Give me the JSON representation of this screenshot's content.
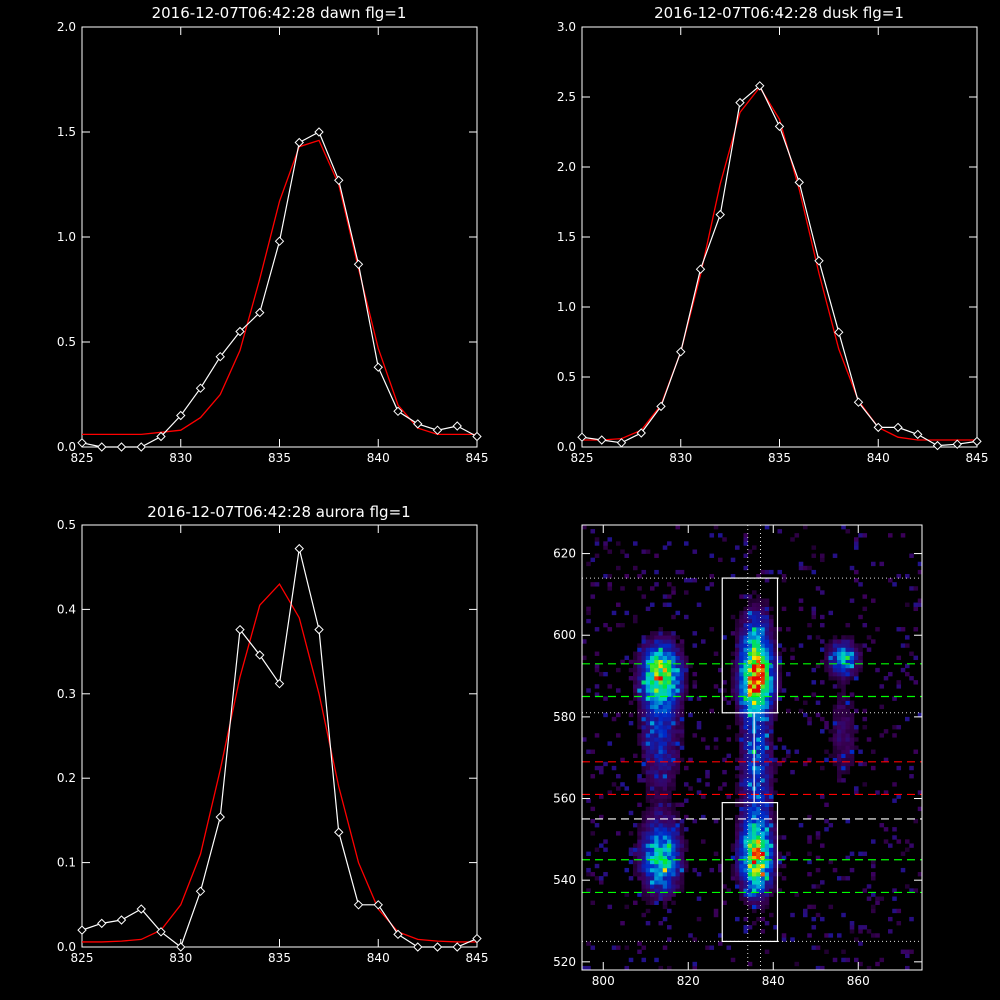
{
  "colors": {
    "background": "#000000",
    "axes": "#ffffff",
    "data": "#ffffff",
    "fit": "#ff0000",
    "green_line": "#00ff00",
    "red_line": "#ff0000"
  },
  "chart_data": [
    {
      "id": "dawn",
      "type": "line",
      "title": "2016-12-07T06:42:28 dawn flg=1",
      "xlim": [
        825,
        845
      ],
      "ylim": [
        0,
        2.0
      ],
      "xticks": [
        "825",
        "830",
        "835",
        "840",
        "845"
      ],
      "yticks": [
        "0.0",
        "0.5",
        "1.0",
        "1.5",
        "2.0"
      ],
      "data_x": [
        825,
        826,
        827,
        828,
        829,
        830,
        831,
        832,
        833,
        834,
        835,
        836,
        837,
        838,
        839,
        840,
        841,
        842,
        843,
        844,
        845
      ],
      "data_y": [
        0.02,
        0.0,
        0.0,
        0.0,
        0.05,
        0.15,
        0.28,
        0.43,
        0.55,
        0.64,
        0.98,
        1.45,
        1.5,
        1.27,
        0.87,
        0.38,
        0.17,
        0.11,
        0.08,
        0.1,
        0.05
      ],
      "fit_x": [
        825,
        826,
        827,
        828,
        829,
        830,
        831,
        832,
        833,
        834,
        835,
        836,
        837,
        838,
        839,
        840,
        841,
        842,
        843,
        844,
        845
      ],
      "fit_y": [
        0.06,
        0.06,
        0.06,
        0.06,
        0.07,
        0.08,
        0.14,
        0.25,
        0.46,
        0.8,
        1.17,
        1.43,
        1.46,
        1.25,
        0.85,
        0.47,
        0.2,
        0.09,
        0.06,
        0.06,
        0.06
      ]
    },
    {
      "id": "dusk",
      "type": "line",
      "title": "2016-12-07T06:42:28 dusk flg=1",
      "xlim": [
        825,
        845
      ],
      "ylim": [
        0,
        3.0
      ],
      "xticks": [
        "825",
        "830",
        "835",
        "840",
        "845"
      ],
      "yticks": [
        "0.0",
        "0.5",
        "1.0",
        "1.5",
        "2.0",
        "2.5",
        "3.0"
      ],
      "data_x": [
        825,
        826,
        827,
        828,
        829,
        830,
        831,
        832,
        833,
        834,
        835,
        836,
        837,
        838,
        839,
        840,
        841,
        842,
        843,
        844,
        845
      ],
      "data_y": [
        0.07,
        0.05,
        0.03,
        0.1,
        0.29,
        0.68,
        1.27,
        1.66,
        2.46,
        2.58,
        2.29,
        1.89,
        1.33,
        0.82,
        0.32,
        0.14,
        0.14,
        0.09,
        0.01,
        0.02,
        0.04
      ],
      "fit_x": [
        825,
        826,
        827,
        828,
        829,
        830,
        831,
        832,
        833,
        834,
        835,
        836,
        837,
        838,
        839,
        840,
        841,
        842,
        843,
        844,
        845
      ],
      "fit_y": [
        0.05,
        0.05,
        0.06,
        0.12,
        0.3,
        0.68,
        1.23,
        1.88,
        2.39,
        2.57,
        2.34,
        1.84,
        1.24,
        0.7,
        0.33,
        0.14,
        0.07,
        0.05,
        0.05,
        0.05,
        0.05
      ]
    },
    {
      "id": "aurora",
      "type": "line",
      "title": "2016-12-07T06:42:28 aurora flg=1",
      "xlim": [
        825,
        845
      ],
      "ylim": [
        0,
        0.5
      ],
      "xticks": [
        "825",
        "830",
        "835",
        "840",
        "845"
      ],
      "yticks": [
        "0.0",
        "0.1",
        "0.2",
        "0.3",
        "0.4",
        "0.5"
      ],
      "data_x": [
        825,
        826,
        827,
        828,
        829,
        830,
        831,
        832,
        833,
        834,
        835,
        836,
        837,
        838,
        839,
        840,
        841,
        842,
        843,
        844,
        845
      ],
      "data_y": [
        0.02,
        0.028,
        0.032,
        0.045,
        0.018,
        0.0,
        0.066,
        0.154,
        0.376,
        0.346,
        0.312,
        0.472,
        0.376,
        0.136,
        0.05,
        0.05,
        0.015,
        0.0,
        0.0,
        0.0,
        0.01
      ],
      "fit_x": [
        825,
        826,
        827,
        828,
        829,
        830,
        831,
        832,
        833,
        834,
        835,
        836,
        837,
        838,
        839,
        840,
        841,
        842,
        843,
        844,
        845
      ],
      "fit_y": [
        0.006,
        0.006,
        0.007,
        0.009,
        0.02,
        0.05,
        0.11,
        0.21,
        0.32,
        0.405,
        0.43,
        0.39,
        0.3,
        0.19,
        0.1,
        0.045,
        0.018,
        0.009,
        0.007,
        0.006,
        0.006
      ]
    },
    {
      "id": "spectrogram",
      "type": "heatmap",
      "xlim": [
        795,
        875
      ],
      "ylim": [
        518,
        627
      ],
      "xticks": [
        "800",
        "820",
        "840",
        "860"
      ],
      "yticks": [
        "520",
        "540",
        "560",
        "580",
        "600",
        "620"
      ],
      "boxes": [
        {
          "x": [
            828,
            841
          ],
          "y": [
            581,
            614
          ]
        },
        {
          "x": [
            828,
            841
          ],
          "y": [
            525,
            559
          ]
        }
      ],
      "vertical_dotted_x": [
        834,
        837
      ],
      "white_dotted_y": [
        614,
        581,
        525
      ],
      "white_dashed_y": [
        555
      ],
      "green_dashed_y": [
        593,
        585,
        545,
        537
      ],
      "red_dashed_y": [
        569,
        561
      ]
    }
  ]
}
